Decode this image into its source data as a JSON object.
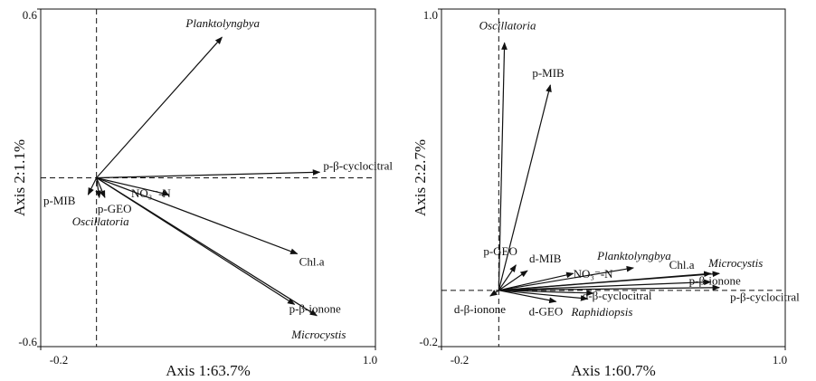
{
  "chart_data": [
    {
      "type": "biplot",
      "xlabel": "Axis 1:63.7%",
      "ylabel": "Axis 2:1.1%",
      "xlim": [
        -0.2,
        1.0
      ],
      "ylim": [
        -0.6,
        0.6
      ],
      "xticks": [
        -0.2,
        {
          "value": 1.0,
          "label": "1.0"
        }
      ],
      "yticks": [
        -0.6,
        0.6
      ],
      "vectors": [
        {
          "name": "Planktolyngbya",
          "x": 0.45,
          "y": 0.5,
          "italic": true
        },
        {
          "name": "p-β-cyclocitral",
          "x": 0.8,
          "y": 0.02,
          "italic": false
        },
        {
          "name": "NO₃⁻-N",
          "x": 0.26,
          "y": -0.06,
          "italic": false
        },
        {
          "name": "Chl.a",
          "x": 0.72,
          "y": -0.27,
          "italic": false
        },
        {
          "name": "p-β-ionone",
          "x": 0.71,
          "y": -0.45,
          "italic": false
        },
        {
          "name": "Microcystis",
          "x": 0.79,
          "y": -0.49,
          "italic": true
        },
        {
          "name": "p-MIB",
          "x": -0.03,
          "y": -0.06,
          "italic": false
        },
        {
          "name": "p-GEO",
          "x": 0.03,
          "y": -0.07,
          "italic": false
        },
        {
          "name": "Oscillatoria",
          "x": 0.01,
          "y": -0.07,
          "italic": true
        }
      ]
    },
    {
      "type": "biplot",
      "xlabel": "Axis 1:60.7%",
      "ylabel": "Axis 2:2.7%",
      "xlim": [
        -0.2,
        1.0
      ],
      "ylim": [
        -0.2,
        1.0
      ],
      "xticks": [
        -0.2,
        {
          "value": 1.0,
          "label": "1.0"
        }
      ],
      "yticks": [
        -0.2,
        {
          "value": 1.0,
          "label": "1.0"
        }
      ],
      "vectors": [
        {
          "name": "Oscillatoria",
          "x": 0.02,
          "y": 0.88,
          "italic": true
        },
        {
          "name": "p-MIB",
          "x": 0.18,
          "y": 0.73,
          "italic": false
        },
        {
          "name": "p-GEO",
          "x": 0.06,
          "y": 0.09,
          "italic": false
        },
        {
          "name": "d-MIB",
          "x": 0.1,
          "y": 0.07,
          "italic": false
        },
        {
          "name": "NO₃⁻-N",
          "x": 0.26,
          "y": 0.06,
          "italic": false
        },
        {
          "name": "Planktolyngbya",
          "x": 0.47,
          "y": 0.08,
          "italic": true
        },
        {
          "name": "Chl.a",
          "x": 0.74,
          "y": 0.06,
          "italic": false
        },
        {
          "name": "Microcystis",
          "x": 0.77,
          "y": 0.06,
          "italic": true
        },
        {
          "name": "p-β-ionone",
          "x": 0.74,
          "y": 0.03,
          "italic": false
        },
        {
          "name": "p-β-cyclocitral",
          "x": 0.77,
          "y": 0.01,
          "italic": false
        },
        {
          "name": "d-β-cyclocitral",
          "x": 0.33,
          "y": -0.01,
          "italic": false
        },
        {
          "name": "d-β-ionone",
          "x": -0.03,
          "y": -0.02,
          "italic": false
        },
        {
          "name": "d-GEO",
          "x": 0.2,
          "y": -0.04,
          "italic": false
        },
        {
          "name": "Raphidiopsis",
          "x": 0.31,
          "y": -0.03,
          "italic": true
        }
      ]
    }
  ]
}
